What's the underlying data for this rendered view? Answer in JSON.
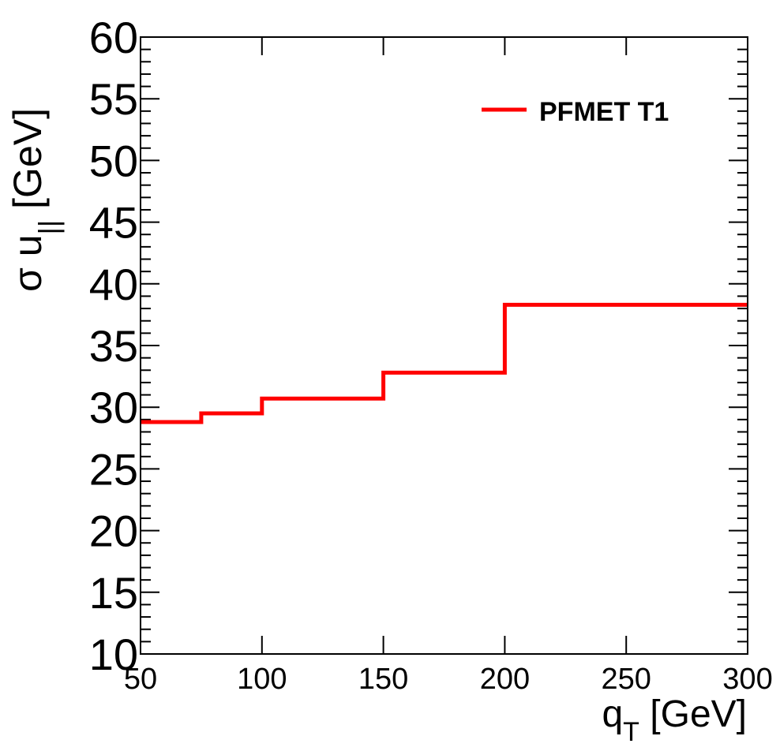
{
  "chart_data": {
    "type": "line",
    "style": "step-histogram",
    "title": "",
    "xlabel": "q",
    "xlabel_sub": "T",
    "xlabel_unit": " [GeV]",
    "ylabel": "σ u",
    "ylabel_sub": "||",
    "ylabel_unit": " [GeV]",
    "xlim": [
      50,
      300
    ],
    "ylim": [
      10,
      60
    ],
    "xticks": [
      50,
      100,
      150,
      200,
      250,
      300
    ],
    "yticks": [
      10,
      15,
      20,
      25,
      30,
      35,
      40,
      45,
      50,
      55,
      60
    ],
    "grid": false,
    "legend_position": "top-right",
    "series": [
      {
        "name": "PFMET T1",
        "color": "#ff0000",
        "bin_edges": [
          50,
          75,
          100,
          150,
          200,
          300
        ],
        "values": [
          28.8,
          29.5,
          30.7,
          32.8,
          38.3
        ]
      }
    ]
  }
}
